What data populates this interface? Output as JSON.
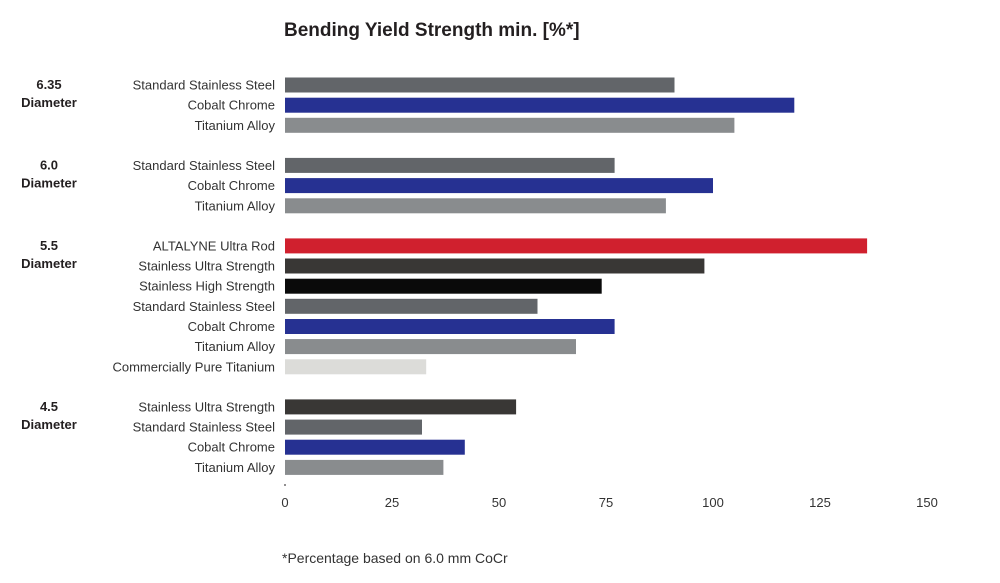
{
  "chart_data": {
    "type": "bar",
    "orientation": "horizontal",
    "title": "Bending Yield Strength min. [%*]",
    "xlabel": "",
    "ylabel": "",
    "xlim": [
      0,
      150
    ],
    "x_ticks": [
      "0",
      "25",
      "50",
      "75",
      "100",
      "125",
      "150"
    ],
    "grid": false,
    "footnote": "*Percentage based on 6.0 mm CoCr",
    "groups": [
      {
        "label_line1": "6.35",
        "label_line2": "Diameter",
        "bars": [
          {
            "label": "Standard Stainless Steel",
            "value": 91,
            "color": "#626569"
          },
          {
            "label": "Cobalt Chrome",
            "value": 119,
            "color": "#263192"
          },
          {
            "label": "Titanium Alloy",
            "value": 105,
            "color": "#898c8e"
          }
        ]
      },
      {
        "label_line1": "6.0",
        "label_line2": "Diameter",
        "bars": [
          {
            "label": "Standard Stainless Steel",
            "value": 77,
            "color": "#626569"
          },
          {
            "label": "Cobalt Chrome",
            "value": 100,
            "color": "#263192"
          },
          {
            "label": "Titanium Alloy",
            "value": 89,
            "color": "#898c8e"
          }
        ]
      },
      {
        "label_line1": "5.5",
        "label_line2": "Diameter",
        "bars": [
          {
            "label": "ALTALYNE Ultra Rod",
            "value": 136,
            "color": "#d0202e"
          },
          {
            "label": "Stainless Ultra Strength",
            "value": 98,
            "color": "#393735"
          },
          {
            "label": "Stainless High Strength",
            "value": 74,
            "color": "#0a0a0a"
          },
          {
            "label": "Standard Stainless Steel",
            "value": 59,
            "color": "#626569"
          },
          {
            "label": "Cobalt Chrome",
            "value": 77,
            "color": "#263192"
          },
          {
            "label": "Titanium Alloy",
            "value": 68,
            "color": "#898c8e"
          },
          {
            "label": "Commercially Pure Titanium",
            "value": 33,
            "color": "#dcdcd9"
          }
        ]
      },
      {
        "label_line1": "4.5",
        "label_line2": "Diameter",
        "bars": [
          {
            "label": "Stainless Ultra Strength",
            "value": 54,
            "color": "#393735"
          },
          {
            "label": "Standard Stainless Steel",
            "value": 32,
            "color": "#626569"
          },
          {
            "label": "Cobalt Chrome",
            "value": 42,
            "color": "#263192"
          },
          {
            "label": "Titanium Alloy",
            "value": 37,
            "color": "#898c8e"
          }
        ]
      }
    ]
  }
}
